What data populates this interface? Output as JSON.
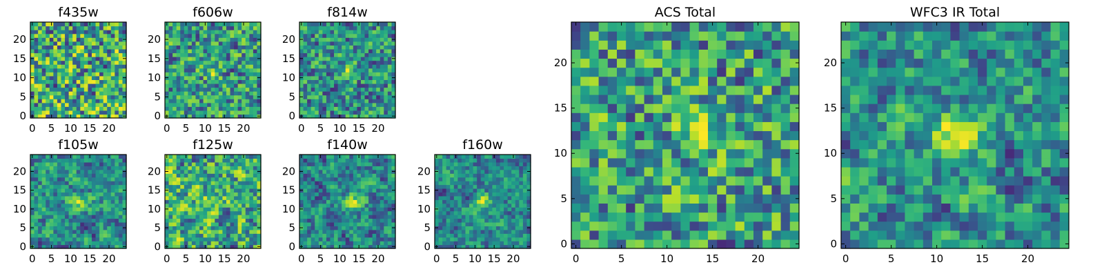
{
  "chart_data": [
    {
      "type": "heatmap",
      "title": "f435w",
      "xticks": [
        "0",
        "5",
        "10",
        "15",
        "20"
      ],
      "yticks": [
        "0",
        "5",
        "10",
        "15",
        "20"
      ],
      "xlim": [
        -0.5,
        24.5
      ],
      "ylim": [
        -0.5,
        24.5
      ],
      "grid": false,
      "rows": 25,
      "cols": 25,
      "colormap": "viridis",
      "bright_center": [
        12,
        12
      ],
      "bright_strength": 0.0
    },
    {
      "type": "heatmap",
      "title": "f606w",
      "xticks": [
        "0",
        "5",
        "10",
        "15",
        "20"
      ],
      "yticks": [
        "0",
        "5",
        "10",
        "15",
        "20"
      ],
      "xlim": [
        -0.5,
        24.5
      ],
      "ylim": [
        -0.5,
        24.5
      ],
      "grid": false,
      "rows": 25,
      "cols": 25,
      "colormap": "viridis",
      "bright_center": [
        12,
        12
      ],
      "bright_strength": 0.3
    },
    {
      "type": "heatmap",
      "title": "f814w",
      "xticks": [
        "0",
        "5",
        "10",
        "15",
        "20"
      ],
      "yticks": [
        "0",
        "5",
        "10",
        "15",
        "20"
      ],
      "xlim": [
        -0.5,
        24.5
      ],
      "ylim": [
        -0.5,
        24.5
      ],
      "grid": false,
      "rows": 25,
      "cols": 25,
      "colormap": "viridis",
      "bright_center": [
        12,
        12
      ],
      "bright_strength": 0.4
    },
    {
      "type": "heatmap",
      "title": "f105w",
      "xticks": [
        "0",
        "5",
        "10",
        "15",
        "20"
      ],
      "yticks": [
        "0",
        "5",
        "10",
        "15",
        "20"
      ],
      "xlim": [
        -0.5,
        24.5
      ],
      "ylim": [
        -0.5,
        24.5
      ],
      "grid": false,
      "rows": 25,
      "cols": 25,
      "colormap": "viridis",
      "bright_center": [
        12,
        12
      ],
      "bright_strength": 0.45
    },
    {
      "type": "heatmap",
      "title": "f125w",
      "xticks": [
        "0",
        "5",
        "10",
        "15",
        "20"
      ],
      "yticks": [
        "0",
        "5",
        "10",
        "15",
        "20"
      ],
      "xlim": [
        -0.5,
        24.5
      ],
      "ylim": [
        -0.5,
        24.5
      ],
      "grid": false,
      "rows": 25,
      "cols": 25,
      "colormap": "viridis",
      "bright_center": [
        12,
        12
      ],
      "bright_strength": 0.35
    },
    {
      "type": "heatmap",
      "title": "f140w",
      "xticks": [
        "0",
        "5",
        "10",
        "15",
        "20"
      ],
      "yticks": [
        "0",
        "5",
        "10",
        "15",
        "20"
      ],
      "xlim": [
        -0.5,
        24.5
      ],
      "ylim": [
        -0.5,
        24.5
      ],
      "grid": false,
      "rows": 25,
      "cols": 25,
      "colormap": "viridis",
      "bright_center": [
        13,
        12
      ],
      "bright_strength": 0.5
    },
    {
      "type": "heatmap",
      "title": "f160w",
      "xticks": [
        "0",
        "5",
        "10",
        "15",
        "20"
      ],
      "yticks": [
        "0",
        "5",
        "10",
        "15",
        "20"
      ],
      "xlim": [
        -0.5,
        24.5
      ],
      "ylim": [
        -0.5,
        24.5
      ],
      "grid": false,
      "rows": 25,
      "cols": 25,
      "colormap": "viridis",
      "bright_center": [
        12,
        12
      ],
      "bright_strength": 0.5
    },
    {
      "type": "heatmap",
      "title": "ACS Total",
      "xticks": [
        "0",
        "5",
        "10",
        "15",
        "20"
      ],
      "yticks": [
        "0",
        "5",
        "10",
        "15",
        "20"
      ],
      "xlim": [
        -0.5,
        24.5
      ],
      "ylim": [
        -0.5,
        24.5
      ],
      "grid": false,
      "rows": 25,
      "cols": 25,
      "colormap": "viridis",
      "bright_center": [
        13,
        12
      ],
      "bright_strength": 0.3
    },
    {
      "type": "heatmap",
      "title": "WFC3 IR Total",
      "xticks": [
        "0",
        "5",
        "10",
        "15",
        "20"
      ],
      "yticks": [
        "0",
        "5",
        "10",
        "15",
        "20"
      ],
      "xlim": [
        -0.5,
        24.5
      ],
      "ylim": [
        -0.5,
        24.5
      ],
      "grid": false,
      "rows": 25,
      "cols": 25,
      "colormap": "viridis",
      "bright_center": [
        12,
        12
      ],
      "bright_strength": 0.55
    }
  ]
}
